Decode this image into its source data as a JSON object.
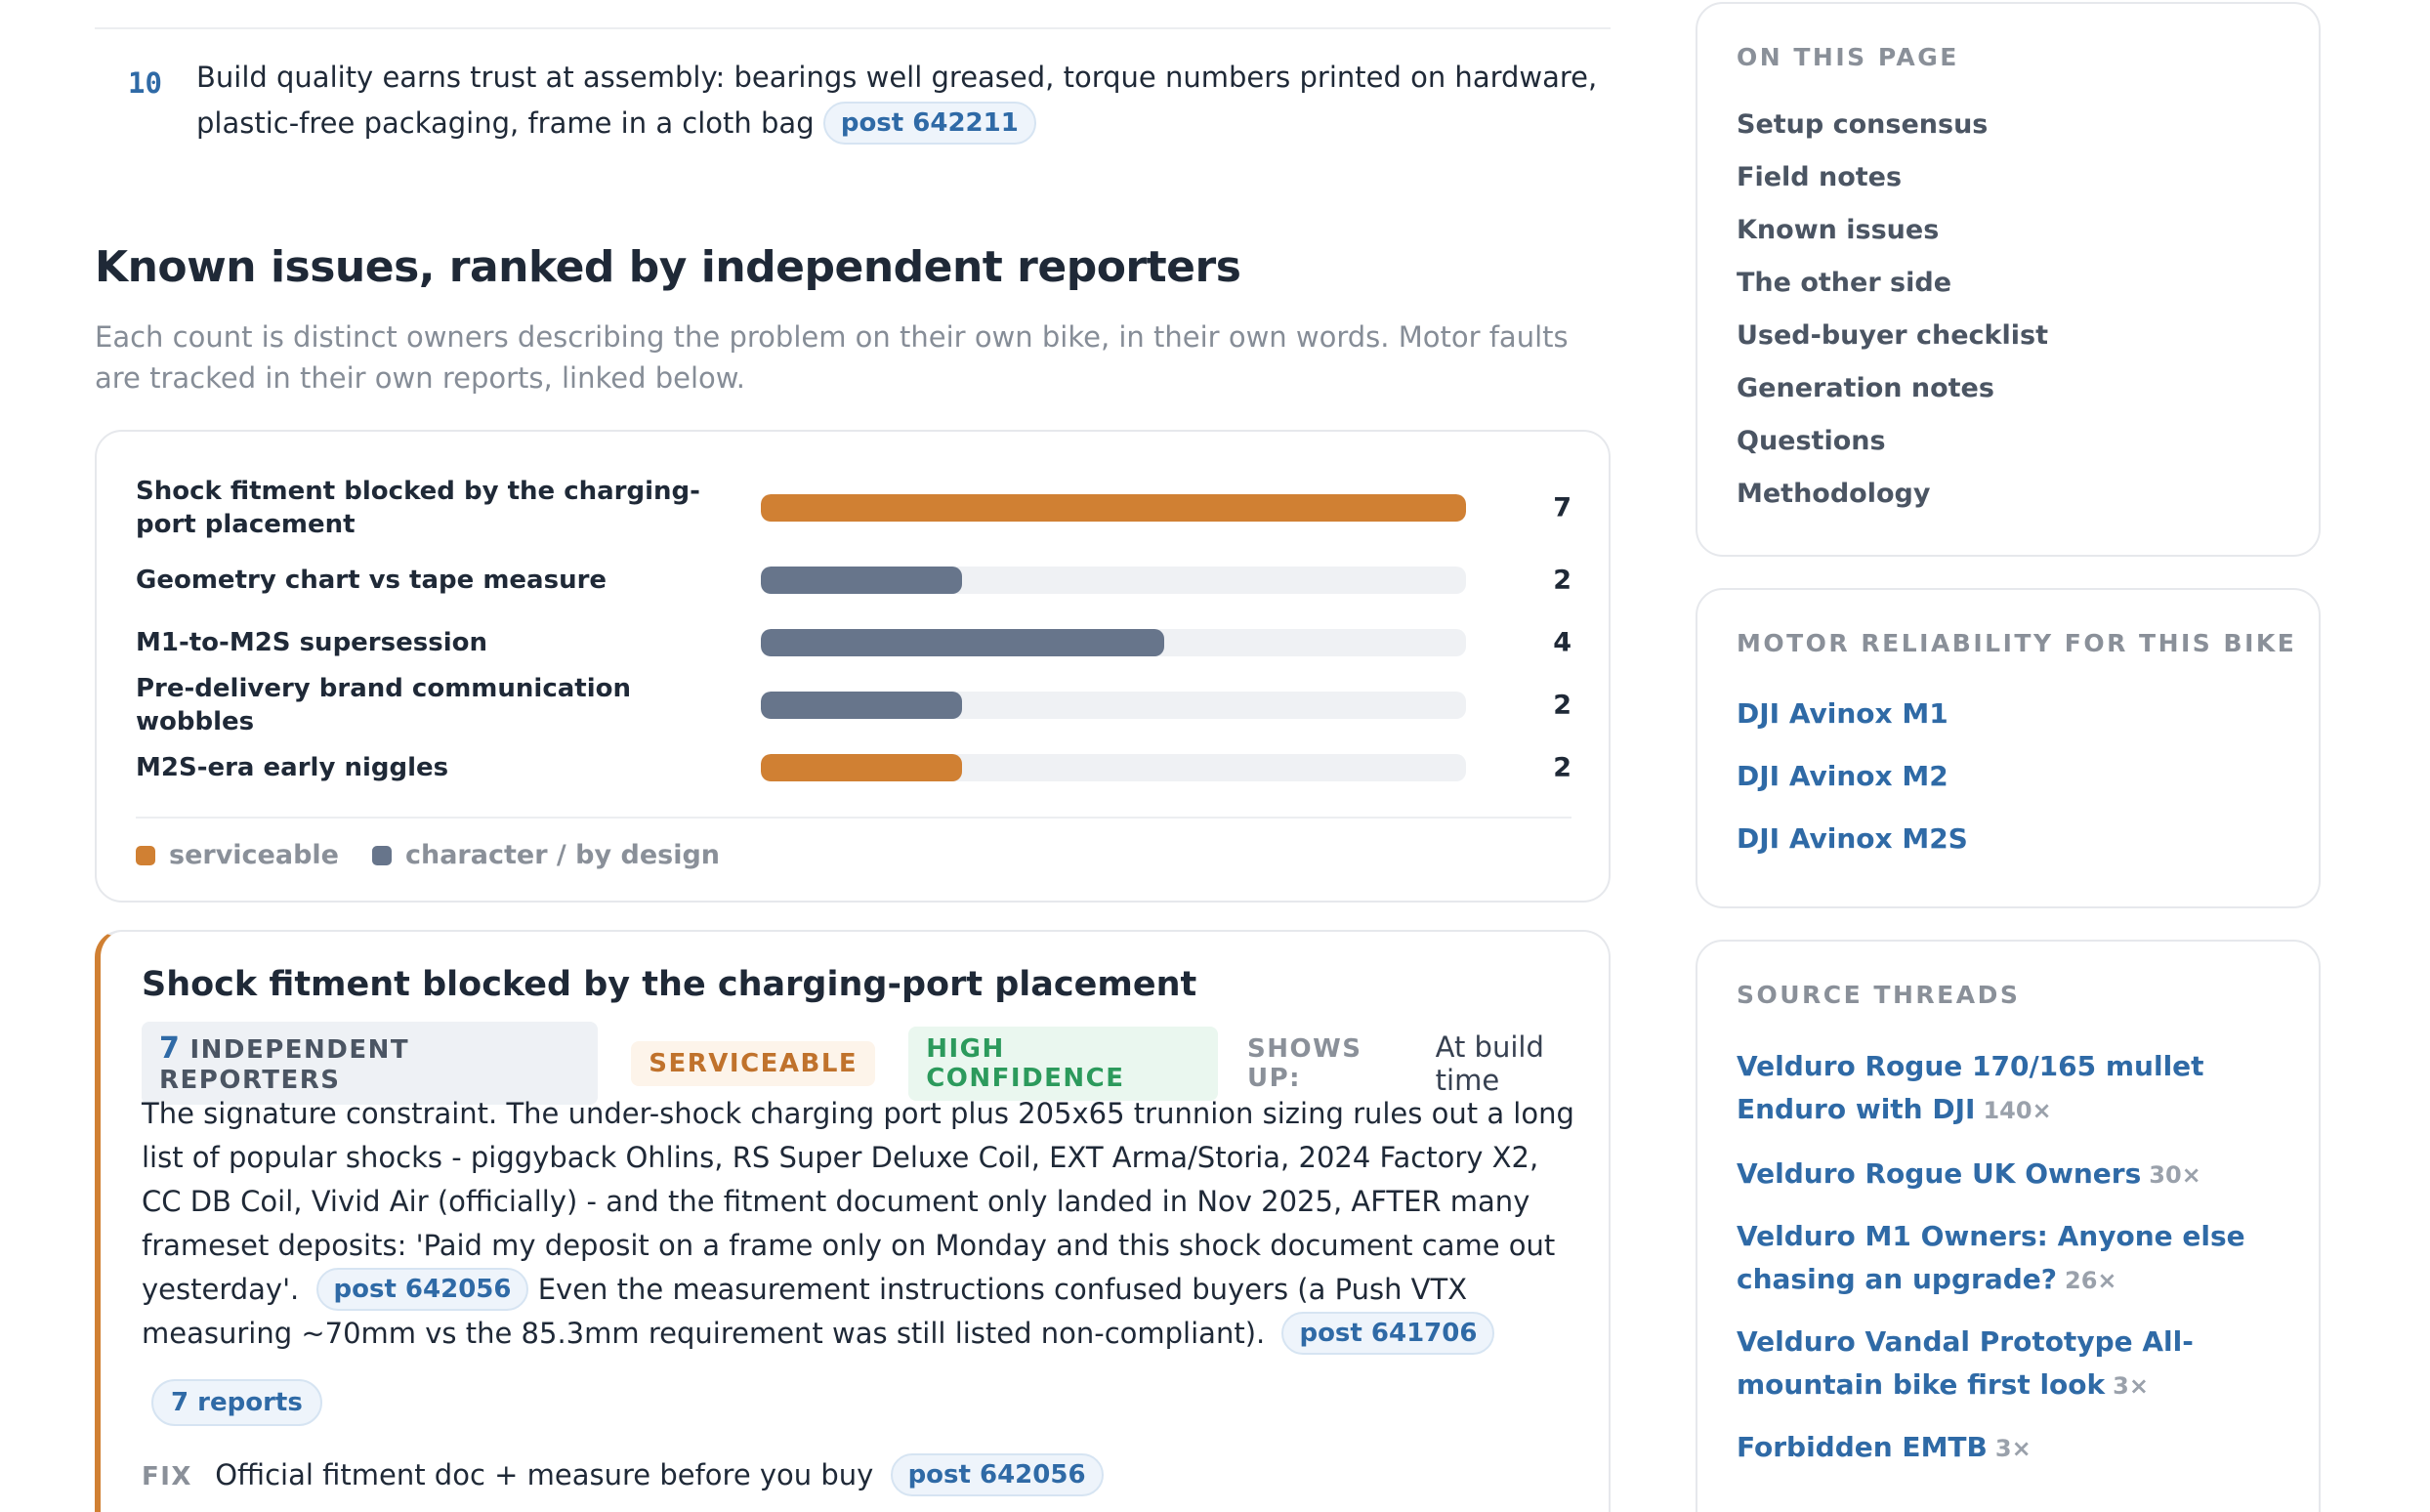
{
  "item10": {
    "number": "10",
    "text": "Build quality earns trust at assembly: bearings well greased, torque numbers printed on hardware, plastic-free packaging, frame in a cloth bag",
    "post": "post 642211"
  },
  "section": {
    "title": "Known issues, ranked by independent reporters",
    "lead": "Each count is distinct owners describing the problem on their own bike, in their own words. Motor faults are tracked in their own reports, linked below."
  },
  "chart_data": {
    "type": "bar",
    "orientation": "horizontal",
    "categories": [
      "Shock fitment blocked by the charging-port placement",
      "Geometry chart vs tape measure",
      "M1-to-M2S supersession",
      "Pre-delivery brand communication wobbles",
      "M2S-era early niggles"
    ],
    "values": [
      7,
      2,
      4,
      2,
      2
    ],
    "kinds": [
      "serviceable",
      "character",
      "character",
      "character",
      "serviceable"
    ],
    "xlim": [
      0,
      7
    ],
    "colors": {
      "serviceable": "#d08033",
      "character": "#67758b"
    },
    "legend": [
      "serviceable",
      "character / by design"
    ]
  },
  "card": {
    "title": "Shock fitment blocked by the charging-port placement",
    "reporters_count": "7",
    "reporters_label": "INDEPENDENT REPORTERS",
    "serviceable": "SERVICEABLE",
    "confidence": "HIGH CONFIDENCE",
    "shows_up_label": "SHOWS UP:",
    "shows_up_value": "At build time",
    "body_1": "The signature constraint. The under-shock charging port plus 205x65 trunnion sizing rules out a long list of popular shocks - piggyback Ohlins, RS Super Deluxe Coil, EXT Arma/Storia, 2024 Factory X2, CC DB Coil, Vivid Air (officially) - and the fitment document only landed in Nov 2025, AFTER many frameset deposits: 'Paid my deposit on a frame only on Monday and this shock document came out yesterday'.",
    "post_1": "post 642056",
    "body_2": "Even the measurement instructions confused buyers (a Push VTX measuring ~70mm vs the 85.3mm requirement was still listed non-compliant).",
    "post_2": "post 641706",
    "reports": "7 reports",
    "fix_label": "FIX",
    "fix_text": "Official fitment doc + measure before you buy",
    "fix_post": "post 642056"
  },
  "toc": {
    "heading": "ON THIS PAGE",
    "items": [
      "Setup consensus",
      "Field notes",
      "Known issues",
      "The other side",
      "Used-buyer checklist",
      "Generation notes",
      "Questions",
      "Methodology"
    ]
  },
  "motors": {
    "heading": "MOTOR RELIABILITY FOR THIS BIKE",
    "items": [
      "DJI Avinox M1",
      "DJI Avinox M2",
      "DJI Avinox M2S"
    ]
  },
  "sources": {
    "heading": "SOURCE THREADS",
    "items": [
      {
        "title": "Velduro Rogue 170/165 mullet Enduro with DJI",
        "count": "140×"
      },
      {
        "title": "Velduro Rogue UK Owners",
        "count": "30×"
      },
      {
        "title": "Velduro M1 Owners: Anyone else chasing an upgrade?",
        "count": "26×"
      },
      {
        "title": "Velduro Vandal Prototype All-mountain bike first look",
        "count": "3×"
      },
      {
        "title": "Forbidden EMTB",
        "count": "3×"
      }
    ]
  }
}
